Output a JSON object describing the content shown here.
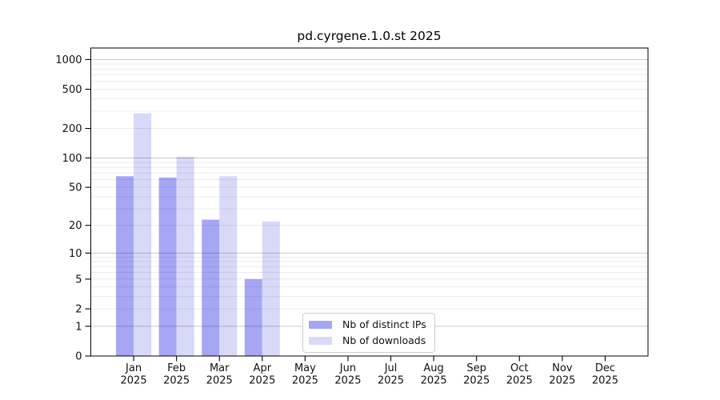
{
  "chart_data": {
    "type": "bar",
    "title": "pd.cyrgene.1.0.st 2025",
    "y_scale": "log1p",
    "grid": true,
    "months": [
      "Jan",
      "Feb",
      "Mar",
      "Apr",
      "May",
      "Jun",
      "Jul",
      "Aug",
      "Sep",
      "Oct",
      "Nov",
      "Dec"
    ],
    "year": "2025",
    "y_ticks": [
      0,
      1,
      2,
      5,
      10,
      20,
      50,
      100,
      200,
      500,
      1000
    ],
    "ylim": [
      0,
      1200
    ],
    "legend_position": "inside-bottom-center",
    "series": [
      {
        "name": "Nb of distinct IPs",
        "color": "#a6a6f4",
        "values": [
          65,
          63,
          23,
          5,
          null,
          null,
          null,
          null,
          null,
          null,
          null,
          null
        ]
      },
      {
        "name": "Nb of downloads",
        "color": "#d8d8f9",
        "values": [
          285,
          103,
          65,
          22,
          null,
          null,
          null,
          null,
          null,
          null,
          null,
          null
        ]
      }
    ],
    "colors": {
      "major_grid": "#c9c9c9",
      "minor_grid": "#ededed",
      "axis": "#000000"
    }
  }
}
